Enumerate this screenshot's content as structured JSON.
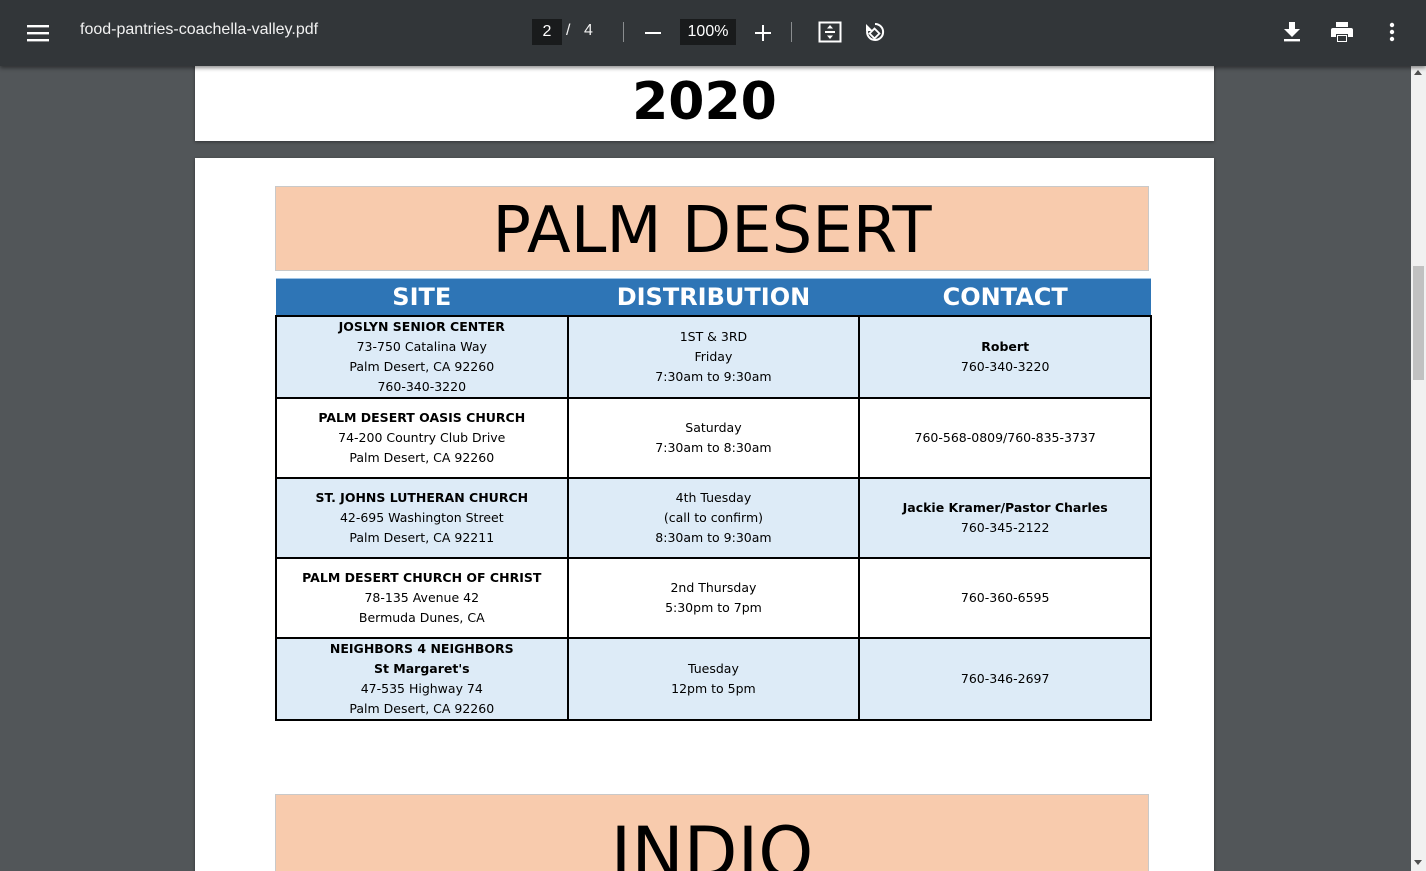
{
  "toolbar": {
    "filename": "food-pantries-coachella-valley.pdf",
    "current_page": "2",
    "page_separator": "/",
    "total_pages": "4",
    "zoom": "100%",
    "icons": {
      "menu": "hamburger-menu-icon",
      "zoom_out": "minus-icon",
      "zoom_in": "plus-icon",
      "fit": "fit-to-page-icon",
      "rotate": "rotate-icon",
      "download": "download-icon",
      "print": "print-icon",
      "more": "more-vertical-icon"
    }
  },
  "document": {
    "page1_year": "2020",
    "section_title": "PALM DESERT",
    "next_section_title": "INDIO",
    "columns": [
      "SITE",
      "DISTRIBUTION",
      "CONTACT"
    ],
    "rows": [
      {
        "site": {
          "name": "JOSLYN SENIOR CENTER",
          "lines": [
            "73-750 Catalina Way",
            "Palm Desert, CA 92260",
            "760-340-3220"
          ]
        },
        "distribution": [
          "1ST & 3RD",
          "Friday",
          "7:30am to 9:30am"
        ],
        "contact": {
          "name": "Robert",
          "lines": [
            "760-340-3220"
          ]
        }
      },
      {
        "site": {
          "name": "PALM DESERT OASIS CHURCH",
          "lines": [
            "74-200 Country Club Drive",
            "Palm Desert, CA 92260"
          ]
        },
        "distribution": [
          "Saturday",
          "7:30am to 8:30am"
        ],
        "contact": {
          "name": "",
          "lines": [
            "760-568-0809/760-835-3737"
          ]
        }
      },
      {
        "site": {
          "name": "ST. JOHNS LUTHERAN CHURCH",
          "lines": [
            "42-695 Washington Street",
            "Palm Desert, CA 92211"
          ]
        },
        "distribution": [
          "4th Tuesday",
          "(call to confirm)",
          "8:30am to 9:30am"
        ],
        "contact": {
          "name": "Jackie Kramer/Pastor Charles",
          "lines": [
            "760-345-2122"
          ]
        }
      },
      {
        "site": {
          "name": "PALM DESERT CHURCH OF CHRIST",
          "lines": [
            "78-135 Avenue 42",
            "Bermuda Dunes, CA"
          ]
        },
        "distribution": [
          "2nd Thursday",
          "5:30pm to 7pm"
        ],
        "contact": {
          "name": "",
          "lines": [
            "760-360-6595"
          ]
        }
      },
      {
        "site": {
          "name": "NEIGHBORS 4 NEIGHBORS",
          "name2": "St Margaret's",
          "lines": [
            "47-535 Highway 74",
            "Palm Desert, CA 92260"
          ]
        },
        "distribution": [
          "Tuesday",
          "12pm to 5pm"
        ],
        "contact": {
          "name": "",
          "lines": [
            "760-346-2697"
          ]
        }
      }
    ]
  }
}
